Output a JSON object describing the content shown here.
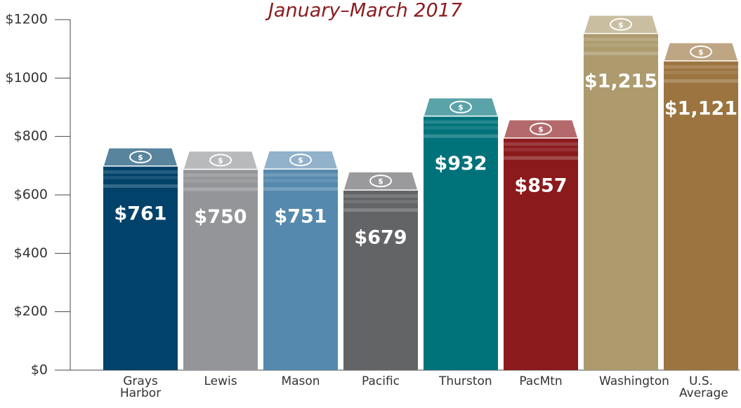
{
  "chart_data": {
    "type": "bar",
    "title": "January–March 2017",
    "categories": [
      "Grays Harbor",
      "Lewis",
      "Mason",
      "Pacific",
      "Thurston",
      "PacMtn",
      "Washington",
      "U.S. Average"
    ],
    "values": [
      761,
      750,
      751,
      679,
      932,
      857,
      1215,
      1121
    ],
    "value_labels": [
      "$761",
      "$750",
      "$751",
      "$679",
      "$932",
      "$857",
      "$1,215",
      "$1,121"
    ],
    "colors": [
      "#00426a",
      "#939598",
      "#5589ad",
      "#636466",
      "#00727a",
      "#8b1a1d",
      "#ad9b6e",
      "#9b7440"
    ],
    "ylim": [
      0,
      1200
    ],
    "yticks": [
      {
        "value": 0,
        "label": "$0"
      },
      {
        "value": 200,
        "label": "$200"
      },
      {
        "value": 400,
        "label": "$400"
      },
      {
        "value": 600,
        "label": "$600"
      },
      {
        "value": 800,
        "label": "$800"
      },
      {
        "value": 1000,
        "label": "$1000"
      },
      {
        "value": 1200,
        "label": "$1200"
      }
    ]
  }
}
